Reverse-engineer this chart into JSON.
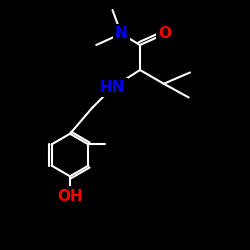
{
  "background_color": "#000000",
  "bond_color": "#ffffff",
  "N_color": "#0000ff",
  "O_color": "#ff0000",
  "label_N": "N",
  "label_NH": "HN",
  "label_O": "O",
  "label_OH": "OH",
  "font_size_atoms": 11,
  "line_width": 1.5,
  "figsize": [
    2.5,
    2.5
  ],
  "dpi": 100,
  "xlim": [
    0,
    10
  ],
  "ylim": [
    0,
    10
  ]
}
